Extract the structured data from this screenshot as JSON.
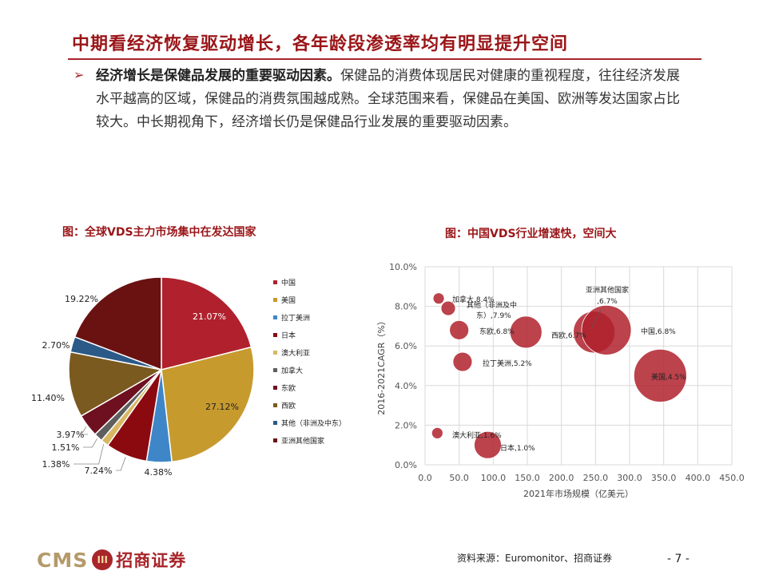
{
  "header": {
    "title": "中期看经济恢复驱动增长，各年龄段渗透率均有明显提升空间"
  },
  "bullet": {
    "marker": "➢",
    "bold": "经济增长是保健品发展的重要驱动因素。",
    "text": "保健品的消费体现居民对健康的重视程度，往往经济发展水平越高的区域，保健品的消费氛围越成熟。全球范围来看，保健品在美国、欧洲等发达国家占比较大。中长期视角下，经济增长仍是保健品行业发展的重要驱动因素。"
  },
  "footer": {
    "source": "资料来源：Euromonitor、招商证券",
    "page": "- 7 -",
    "logo_latin": "CMS",
    "logo_badge": "III",
    "logo_cn": "招商证券"
  },
  "chart_data": [
    {
      "type": "pie",
      "title": "图：全球VDS主力市场集中在发达国家",
      "categories": [
        "中国",
        "美国",
        "拉丁美洲",
        "日本",
        "澳大利亚",
        "加拿大",
        "东欧",
        "西欧",
        "其他（非洲及中东）",
        "亚洲其他国家"
      ],
      "values": [
        21.07,
        27.12,
        4.38,
        7.24,
        1.38,
        1.51,
        3.97,
        11.4,
        2.7,
        19.22
      ],
      "labels": [
        "21.07%",
        "27.12%",
        "4.38%",
        "7.24%",
        "1.38%",
        "1.51%",
        "3.97%",
        "11.40%",
        "2.70%",
        "19.22%"
      ],
      "colors": [
        "#b0212d",
        "#c79a2e",
        "#3f86c8",
        "#8b0a10",
        "#d8b764",
        "#5e5e5e",
        "#6e1020",
        "#7a5a1e",
        "#2b5a88",
        "#6a1212"
      ],
      "legend_position": "right"
    },
    {
      "type": "scatter",
      "subtype": "bubble",
      "title": "图：中国VDS行业增速快，空间大",
      "xlabel": "2021年市场规模（亿美元）",
      "ylabel": "2016-2021CAGR（%）",
      "xlim": [
        0,
        450
      ],
      "ylim": [
        0,
        10
      ],
      "xticks": [
        "0.0",
        "50.0",
        "100.0",
        "150.0",
        "200.0",
        "250.0",
        "300.0",
        "350.0",
        "400.0",
        "450.0"
      ],
      "yticks": [
        "0.0%",
        "2.0%",
        "4.0%",
        "6.0%",
        "8.0%",
        "10.0%"
      ],
      "grid": true,
      "color": "#b0212d",
      "points": [
        {
          "label": "加拿大,8.4%",
          "x": 20,
          "y": 8.4
        },
        {
          "label": "其他（非洲及中东）,7.9%",
          "x": 34,
          "y": 7.9
        },
        {
          "label": "东欧,6.8%",
          "x": 50,
          "y": 6.8
        },
        {
          "label": "西欧,6.7%",
          "x": 148,
          "y": 6.7
        },
        {
          "label": "亚洲其他国家,6.7%",
          "x": 248,
          "y": 6.7
        },
        {
          "label": "中国,6.8%",
          "x": 266,
          "y": 6.8
        },
        {
          "label": "拉丁美洲,5.2%",
          "x": 55,
          "y": 5.2
        },
        {
          "label": "美国,4.5%",
          "x": 345,
          "y": 4.5
        },
        {
          "label": "澳大利亚,1.6%",
          "x": 18,
          "y": 1.6
        },
        {
          "label": "日本,1.0%",
          "x": 92,
          "y": 1.0
        }
      ]
    }
  ]
}
